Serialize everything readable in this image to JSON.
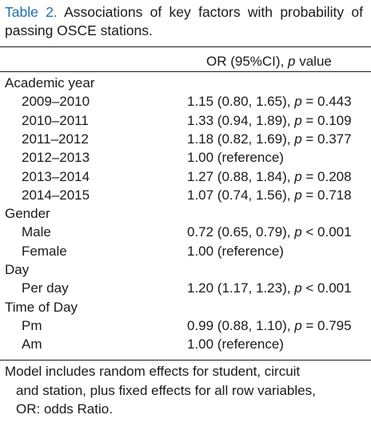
{
  "caption": {
    "label": "Table 2.",
    "text": "Associations of key factors with probability of passing OSCE stations."
  },
  "header": {
    "col2_prefix": "OR (95%CI), ",
    "col2_italic": "p",
    "col2_suffix": " value"
  },
  "rows": [
    {
      "label": "Academic year",
      "kind": "category",
      "value_prefix": "",
      "p_op": "",
      "p_val": ""
    },
    {
      "label": "2009–2010",
      "kind": "sub",
      "value_prefix": "1.15 (0.80, 1.65), ",
      "p_op": " = ",
      "p_val": "0.443"
    },
    {
      "label": "2010–2011",
      "kind": "sub",
      "value_prefix": "1.33 (0.94, 1.89), ",
      "p_op": " = ",
      "p_val": "0.109"
    },
    {
      "label": "2011–2012",
      "kind": "sub",
      "value_prefix": "1.18 (0.82, 1.69), ",
      "p_op": " = ",
      "p_val": "0.377"
    },
    {
      "label": "2012–2013",
      "kind": "sub",
      "value_prefix": "1.00 (reference)",
      "p_op": "",
      "p_val": ""
    },
    {
      "label": "2013–2014",
      "kind": "sub",
      "value_prefix": "1.27 (0.88, 1.84), ",
      "p_op": " = ",
      "p_val": "0.208"
    },
    {
      "label": "2014–2015",
      "kind": "sub",
      "value_prefix": "1.07 (0.74, 1.56), ",
      "p_op": " = ",
      "p_val": "0.718"
    },
    {
      "label": "Gender",
      "kind": "category",
      "value_prefix": "",
      "p_op": "",
      "p_val": ""
    },
    {
      "label": "Male",
      "kind": "sub",
      "value_prefix": "0.72 (0.65, 0.79), ",
      "p_op": " < ",
      "p_val": "0.001"
    },
    {
      "label": "Female",
      "kind": "sub",
      "value_prefix": "1.00 (reference)",
      "p_op": "",
      "p_val": ""
    },
    {
      "label": "Day",
      "kind": "category",
      "value_prefix": "",
      "p_op": "",
      "p_val": ""
    },
    {
      "label": "Per day",
      "kind": "sub",
      "value_prefix": "1.20 (1.17, 1.23), ",
      "p_op": " < ",
      "p_val": "0.001"
    },
    {
      "label": "Time of Day",
      "kind": "category",
      "value_prefix": "",
      "p_op": "",
      "p_val": ""
    },
    {
      "label": "Pm",
      "kind": "sub",
      "value_prefix": "0.99 (0.88, 1.10), ",
      "p_op": " = ",
      "p_val": "0.795"
    },
    {
      "label": "Am",
      "kind": "sub",
      "value_prefix": "1.00 (reference)",
      "p_op": "",
      "p_val": ""
    }
  ],
  "footnote": {
    "line1": "Model includes random effects for student, circuit",
    "line2": "and station, plus fixed effects for all row variables,",
    "line3": "OR: odds Ratio."
  },
  "colors": {
    "caption_label": "#1f6fb2",
    "text": "#1a1a1a"
  }
}
